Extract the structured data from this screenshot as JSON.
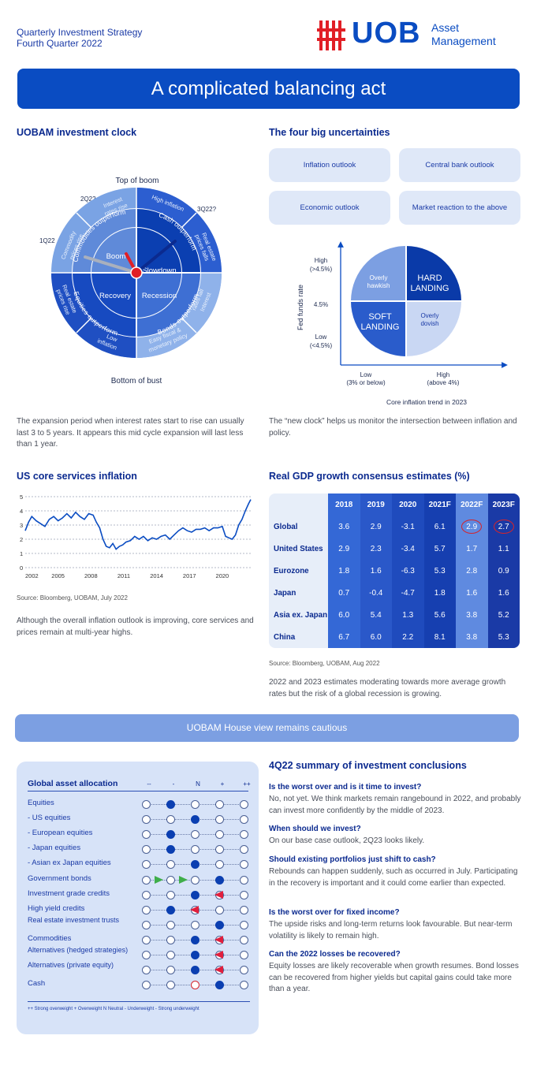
{
  "header": {
    "line1": "Quarterly Investment Strategy",
    "line2": "Fourth Quarter 2022",
    "logo_text": "UOB",
    "logo_sub1": "Asset",
    "logo_sub2": "Management",
    "brand_red": "#e11f26",
    "brand_blue": "#0a4cc2"
  },
  "banner": {
    "title": "A complicated balancing act"
  },
  "clock": {
    "title": "UOBAM investment clock",
    "top_label": "Top of boom",
    "bottom_label": "Bottom of bust",
    "q_2q22": "2Q22",
    "q_3q22": "3Q22?",
    "q_1q22": "1Q22",
    "inner": {
      "boom": "Boom",
      "slowdown": "Slowdown",
      "recovery": "Recovery",
      "recession": "Recession"
    },
    "middle": {
      "commodities": "Commodities outperform",
      "cash": "Cash outperform",
      "equities": "Equities outperform",
      "bonds": "Bonds outperform"
    },
    "outer": {
      "interest_rise": [
        "Interest",
        "rates rise"
      ],
      "high_inflation": "High inflation",
      "real_estate_falls": [
        "Real estate",
        "prices falls"
      ],
      "interest_fall": [
        "Interest",
        "rates fall"
      ],
      "easy_fiscal": [
        "Easy fiscal &",
        "monetary policy"
      ],
      "low_inflation": [
        "Low",
        "inflation"
      ],
      "real_estate_rise": [
        "Real estate",
        "prices rise"
      ],
      "commodity_rise": [
        "Commodity",
        "prices rise"
      ]
    },
    "description": "The expansion period when interest rates start to rise can usually last 3 to 5 years. It appears this mid cycle expansion will last less than 1 year."
  },
  "uncertainties": {
    "title": "The four big uncertainties",
    "boxes": [
      "Inflation outlook",
      "Central bank outlook",
      "Economic outlook",
      "Market reaction to the above"
    ],
    "y_axis": "Fed funds rate",
    "y_high": [
      "High",
      "(>4.5%)"
    ],
    "y_mid": "4.5%",
    "y_low": [
      "Low",
      "(<4.5%)"
    ],
    "x_low": [
      "Low",
      "(3% or below)"
    ],
    "x_high": [
      "High",
      "(above 4%)"
    ],
    "x_axis": "Core inflation trend in 2023",
    "quadrants": {
      "overly_hawkish": [
        "Overly",
        "hawkish"
      ],
      "hard_landing": [
        "HARD",
        "LANDING"
      ],
      "soft_landing": [
        "SOFT",
        "LANDING"
      ],
      "overly_dovish": [
        "Overly",
        "dovish"
      ]
    },
    "description": "The “new clock” helps us monitor the intersection between inflation and policy."
  },
  "inflation": {
    "title": "US core services inflation",
    "source": "Source: Bloomberg, UOBAM, July 2022",
    "description": "Although the overall inflation outlook is improving, core services and prices remain at multi-year highs."
  },
  "chart_data": {
    "type": "line",
    "title": "US core services inflation",
    "xlabel": "",
    "ylabel": "",
    "ylim": [
      0,
      5
    ],
    "xlim": [
      2002,
      2022.6
    ],
    "y_ticks": [
      "0",
      "1",
      "2",
      "3",
      "4",
      "5"
    ],
    "x_ticks": [
      "2002",
      "2005",
      "2008",
      "2011",
      "2014",
      "2017",
      "2020"
    ],
    "grid": true,
    "series": [
      {
        "x": [
          2002.0,
          2002.3,
          2002.6,
          2003.0,
          2003.4,
          2003.8,
          2004.2,
          2004.6,
          2005.0,
          2005.4,
          2005.8,
          2006.2,
          2006.6,
          2007.0,
          2007.4,
          2007.8,
          2008.2,
          2008.5,
          2008.8,
          2009.1,
          2009.4,
          2009.7,
          2010.0,
          2010.3,
          2010.6,
          2010.9,
          2011.2,
          2011.6,
          2012.0,
          2012.4,
          2012.8,
          2013.2,
          2013.6,
          2014.0,
          2014.4,
          2014.8,
          2015.2,
          2015.6,
          2016.0,
          2016.4,
          2016.8,
          2017.2,
          2017.6,
          2018.0,
          2018.4,
          2018.8,
          2019.2,
          2019.6,
          2020.0,
          2020.3,
          2020.6,
          2020.9,
          2021.2,
          2021.5,
          2021.8,
          2022.1,
          2022.4,
          2022.6
        ],
        "values": [
          2.6,
          3.2,
          3.6,
          3.3,
          3.1,
          2.9,
          3.4,
          3.6,
          3.3,
          3.5,
          3.8,
          3.5,
          3.9,
          3.6,
          3.4,
          3.8,
          3.7,
          3.2,
          2.8,
          2.0,
          1.5,
          1.4,
          1.7,
          1.3,
          1.5,
          1.6,
          1.8,
          1.9,
          2.2,
          2.0,
          2.2,
          1.9,
          2.1,
          2.0,
          2.2,
          2.3,
          2.0,
          2.3,
          2.6,
          2.8,
          2.6,
          2.5,
          2.7,
          2.7,
          2.8,
          2.6,
          2.8,
          2.8,
          2.9,
          2.2,
          2.1,
          2.0,
          2.3,
          3.0,
          3.4,
          4.0,
          4.5,
          4.8
        ]
      }
    ]
  },
  "gdp": {
    "title": "Real GDP growth consensus estimates (%)",
    "headers": [
      "2018",
      "2019",
      "2020",
      "2021F",
      "2022F",
      "2023F"
    ],
    "rows": [
      {
        "label": "Global",
        "values": [
          "3.6",
          "2.9",
          "-3.1",
          "6.1",
          "2.9",
          "2.7"
        ]
      },
      {
        "label": "United States",
        "values": [
          "2.9",
          "2.3",
          "-3.4",
          "5.7",
          "1.7",
          "1.1"
        ]
      },
      {
        "label": "Eurozone",
        "values": [
          "1.8",
          "1.6",
          "-6.3",
          "5.3",
          "2.8",
          "0.9"
        ]
      },
      {
        "label": "Japan",
        "values": [
          "0.7",
          "-0.4",
          "-4.7",
          "1.8",
          "1.6",
          "1.6"
        ]
      },
      {
        "label": "Asia ex. Japan",
        "values": [
          "6.0",
          "5.4",
          "1.3",
          "5.6",
          "3.8",
          "5.2"
        ]
      },
      {
        "label": "China",
        "values": [
          "6.7",
          "6.0",
          "2.2",
          "8.1",
          "3.8",
          "5.3"
        ]
      }
    ],
    "source": "Source: Bloomberg, UOBAM, Aug 2022",
    "description": "2022 and 2023 estimates moderating towards more average growth rates but the risk of a global recession is growing."
  },
  "house_view": {
    "title": "UOBAM House view remains cautious"
  },
  "allocation": {
    "title": "Global asset allocation",
    "columns": [
      "--",
      "-",
      "N",
      "+",
      "++"
    ],
    "rows": [
      {
        "label": "Equities",
        "filled": 1,
        "marks": []
      },
      {
        "label": "- US equities",
        "filled": 2,
        "marks": []
      },
      {
        "label": "- European equities",
        "filled": 1,
        "marks": []
      },
      {
        "label": "- Japan equities",
        "filled": 1,
        "marks": []
      },
      {
        "label": "- Asian ex Japan equities",
        "filled": 2,
        "marks": []
      },
      {
        "label": "Government bonds",
        "filled": 3,
        "marks": [
          {
            "type": "right",
            "pos": 0.5
          },
          {
            "type": "right",
            "pos": 1.5
          }
        ]
      },
      {
        "label": "Investment grade credits",
        "filled": 2,
        "marks": [
          {
            "type": "left",
            "pos": 3
          }
        ]
      },
      {
        "label": "High yield credits",
        "filled": 1,
        "marks": [
          {
            "type": "left",
            "pos": 2
          }
        ]
      },
      {
        "label": "Real estate investment trusts",
        "filled": 3,
        "marks": []
      },
      {
        "label": "Commodities",
        "filled": 2,
        "marks": [
          {
            "type": "left",
            "pos": 3
          }
        ]
      },
      {
        "label": "Alternatives (hedged strategies)",
        "filled": 2,
        "marks": [
          {
            "type": "left",
            "pos": 3
          }
        ]
      },
      {
        "label": "Alternatives (private equity)",
        "filled": 2,
        "marks": [
          {
            "type": "left",
            "pos": 3
          }
        ]
      },
      {
        "label": "Cash",
        "filled": 3,
        "red": 2,
        "marks": []
      }
    ],
    "legend": "++ Strong overweight   + Overweight   N Neutral   - Underweight   - Strong underweight"
  },
  "summary": {
    "title": "4Q22 summary of investment conclusions",
    "items": [
      {
        "q": "Is the worst over and is it time to invest?",
        "a": "No, not yet. We think markets remain rangebound in 2022, and probably can invest more confidently by the middle of 2023."
      },
      {
        "q": "When should we invest?",
        "a": "On our base case outlook, 2Q23 looks likely."
      },
      {
        "q": "Should existing portfolios just shift to cash?",
        "a": "Rebounds can happen suddenly, such as occurred in July. Participating in the recovery is important and it could come earlier than expected."
      },
      {
        "q": "Is the worst over for fixed income?",
        "a": "The upside risks and long-term returns look favourable. But near-term volatility is likely to remain high."
      },
      {
        "q": "Can the 2022 losses be recovered?",
        "a": "Equity losses are likely recoverable when growth resumes. Bond losses can be recovered from higher yields but capital gains could take more than a year."
      }
    ]
  }
}
